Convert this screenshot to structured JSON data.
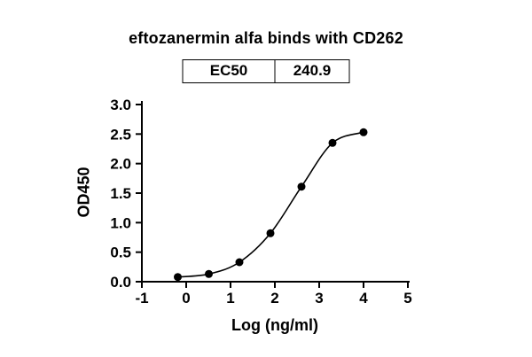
{
  "chart_data": {
    "type": "scatter",
    "title": "eftozanermin alfa binds with CD262",
    "xlabel": "Log (ng/ml)",
    "ylabel": "OD450",
    "xlim": [
      -1,
      5
    ],
    "ylim": [
      0,
      3
    ],
    "grid": false,
    "legend": "none",
    "marker_color": "#000000",
    "line_color": "#000000",
    "curve": "smooth-sigmoid-fit",
    "xticks": {
      "values": [
        -1,
        0,
        1,
        2,
        3,
        4,
        5
      ],
      "labels": [
        "-1",
        "0",
        "1",
        "2",
        "3",
        "4",
        "5"
      ]
    },
    "yticks": {
      "values": [
        0,
        0.5,
        1,
        1.5,
        2,
        2.5,
        3
      ],
      "labels": [
        "0.0",
        "0.5",
        "1.0",
        "1.5",
        "2.0",
        "2.5",
        "3.0"
      ]
    },
    "series": [
      {
        "name": "eftozanermin alfa",
        "x": [
          -0.19,
          0.51,
          1.2,
          1.9,
          2.6,
          3.3,
          4.0
        ],
        "y": [
          0.08,
          0.13,
          0.33,
          0.82,
          1.61,
          2.35,
          2.53
        ]
      }
    ],
    "ec50": {
      "label": "EC50",
      "value": "240.9"
    }
  }
}
